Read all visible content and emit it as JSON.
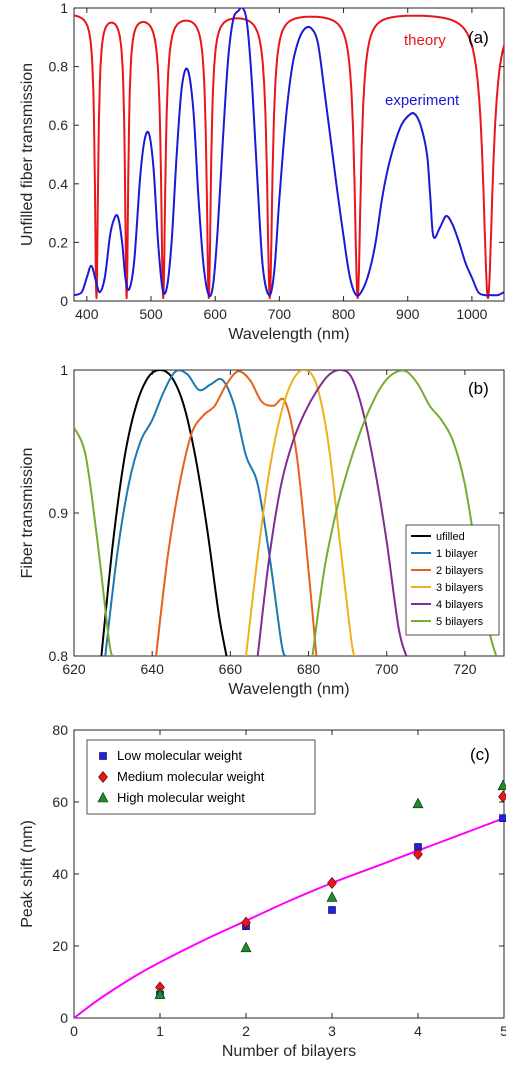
{
  "chart_data": [
    {
      "type": "line",
      "panel_label": "(a)",
      "xlabel": "Wavelength (nm)",
      "ylabel": "Unfilled fiber transmission",
      "xlim": [
        380,
        1050
      ],
      "ylim": [
        0,
        1
      ],
      "xticks": [
        400,
        500,
        600,
        700,
        800,
        900,
        1000
      ],
      "yticks": [
        0,
        0.2,
        0.4,
        0.6,
        0.8,
        1
      ],
      "ytick_labels": [
        "0",
        "0.2",
        "0.4",
        "0.6",
        "0.8",
        "1"
      ],
      "grid": false,
      "annotations": [
        {
          "text": "theory",
          "color": "#e8161b"
        },
        {
          "text": "experiment",
          "color": "#1a1ad6"
        }
      ],
      "series": [
        {
          "name": "theory",
          "color": "#e8161b",
          "dips": [
            {
              "x": 415,
              "width": 3
            },
            {
              "x": 462,
              "width": 3
            },
            {
              "x": 519,
              "width": 4
            },
            {
              "x": 590,
              "width": 4
            },
            {
              "x": 685,
              "width": 5
            },
            {
              "x": 822,
              "width": 6
            },
            {
              "x": 1025,
              "width": 9
            }
          ]
        },
        {
          "name": "experiment",
          "color": "#1a1ad6",
          "x": [
            380,
            392,
            400,
            407,
            414,
            420,
            428,
            436,
            441,
            448,
            455,
            460,
            466,
            474,
            483,
            490,
            497,
            504,
            511,
            518,
            525,
            532,
            540,
            548,
            557,
            566,
            574,
            582,
            590,
            597,
            604,
            612,
            620,
            628,
            636,
            643,
            650,
            658,
            666,
            674,
            684,
            692,
            700,
            710,
            720,
            730,
            740,
            750,
            760,
            770,
            780,
            790,
            800,
            810,
            820,
            830,
            840,
            850,
            860,
            870,
            880,
            890,
            900,
            910,
            920,
            930,
            935,
            940,
            950,
            960,
            970,
            980,
            990,
            1000,
            1010,
            1020,
            1030,
            1040,
            1050
          ],
          "y": [
            0.02,
            0.03,
            0.08,
            0.12,
            0.07,
            0.03,
            0.08,
            0.22,
            0.27,
            0.29,
            0.2,
            0.08,
            0.04,
            0.14,
            0.42,
            0.55,
            0.57,
            0.45,
            0.2,
            0.04,
            0.05,
            0.2,
            0.5,
            0.73,
            0.79,
            0.65,
            0.35,
            0.12,
            0.02,
            0.06,
            0.25,
            0.55,
            0.82,
            0.96,
            0.99,
            1.0,
            0.94,
            0.72,
            0.4,
            0.12,
            0.02,
            0.1,
            0.35,
            0.62,
            0.8,
            0.89,
            0.93,
            0.93,
            0.88,
            0.72,
            0.55,
            0.38,
            0.22,
            0.08,
            0.02,
            0.04,
            0.1,
            0.2,
            0.35,
            0.46,
            0.54,
            0.6,
            0.63,
            0.64,
            0.6,
            0.5,
            0.36,
            0.22,
            0.25,
            0.29,
            0.26,
            0.2,
            0.13,
            0.08,
            0.03,
            0.02,
            0.02,
            0.02,
            0.03
          ]
        }
      ]
    },
    {
      "type": "line",
      "panel_label": "(b)",
      "xlabel": "Wavelength (nm)",
      "ylabel": "Fiber transmission",
      "xlim": [
        620,
        730
      ],
      "ylim": [
        0.8,
        1
      ],
      "xticks": [
        620,
        640,
        660,
        680,
        700,
        720
      ],
      "yticks": [
        0.8,
        0.9,
        1
      ],
      "ytick_labels": [
        "0.8",
        "0.9",
        "1"
      ],
      "grid": false,
      "legend": "bottom-right",
      "series": [
        {
          "name": "ufilled",
          "color": "#000000",
          "x": [
            627,
            630,
            633,
            636,
            639,
            642,
            645,
            648,
            651,
            654,
            657,
            659
          ],
          "y": [
            0.8,
            0.88,
            0.94,
            0.976,
            0.995,
            1.0,
            0.995,
            0.976,
            0.94,
            0.89,
            0.83,
            0.8
          ]
        },
        {
          "name": "1 bilayer",
          "color": "#1f77b4",
          "x": [
            628,
            631,
            634,
            637,
            640,
            643,
            646,
            649,
            652,
            655,
            658,
            661,
            664,
            667,
            670,
            673,
            674
          ],
          "y": [
            0.8,
            0.87,
            0.92,
            0.95,
            0.965,
            0.985,
            0.999,
            0.997,
            0.986,
            0.99,
            0.993,
            0.975,
            0.94,
            0.92,
            0.87,
            0.81,
            0.8
          ]
        },
        {
          "name": "2 bilayers",
          "color": "#e5621c",
          "x": [
            641,
            644,
            647,
            650,
            653,
            656,
            659,
            662,
            665,
            668,
            671,
            674,
            677,
            680,
            682
          ],
          "y": [
            0.8,
            0.87,
            0.92,
            0.955,
            0.968,
            0.975,
            0.99,
            0.999,
            0.993,
            0.978,
            0.975,
            0.978,
            0.94,
            0.86,
            0.8
          ]
        },
        {
          "name": "3 bilayers",
          "color": "#eeb11c",
          "x": [
            664,
            667,
            670,
            673,
            676,
            679,
            682,
            685,
            688,
            691,
            692
          ],
          "y": [
            0.8,
            0.87,
            0.93,
            0.97,
            0.993,
            1.0,
            0.99,
            0.95,
            0.88,
            0.81,
            0.8
          ]
        },
        {
          "name": "4 bilayers",
          "color": "#7e2f8e",
          "x": [
            667,
            670,
            673,
            676,
            679,
            682,
            685,
            688,
            691,
            694,
            697,
            700,
            703,
            705
          ],
          "y": [
            0.8,
            0.87,
            0.92,
            0.95,
            0.97,
            0.985,
            0.996,
            1.0,
            0.995,
            0.97,
            0.93,
            0.88,
            0.82,
            0.8
          ]
        },
        {
          "name": "5 bilayers",
          "color": "#77ac30",
          "x": [
            620,
            623,
            626,
            629,
            630,
            681,
            684,
            687,
            690,
            693,
            696,
            699,
            702,
            705,
            708,
            711,
            714,
            717,
            720,
            723,
            726,
            728
          ],
          "y": [
            0.96,
            0.94,
            0.88,
            0.81,
            0.8,
            0.8,
            0.86,
            0.9,
            0.93,
            0.955,
            0.975,
            0.99,
            0.998,
            0.999,
            0.99,
            0.975,
            0.965,
            0.95,
            0.92,
            0.87,
            0.82,
            0.8
          ],
          "breaks_after_index": 4
        }
      ]
    },
    {
      "type": "scatter",
      "panel_label": "(c)",
      "xlabel": "Number of bilayers",
      "ylabel": "Peak shift (nm)",
      "xlim": [
        0,
        5
      ],
      "ylim": [
        0,
        80
      ],
      "xticks": [
        0,
        1,
        2,
        3,
        4,
        5
      ],
      "yticks": [
        0,
        20,
        40,
        60,
        80
      ],
      "grid": false,
      "legend": "top-left",
      "series": [
        {
          "name": "Low molecular weight",
          "color": "#2222dd",
          "marker": "square",
          "x": [
            1,
            2,
            3,
            4,
            5
          ],
          "y": [
            6.5,
            25.5,
            30,
            47.5,
            55.5
          ]
        },
        {
          "name": "Medium molecular weight",
          "color": "#e8161b",
          "marker": "diamond",
          "x": [
            1,
            2,
            3,
            4,
            5
          ],
          "y": [
            8.5,
            26.5,
            37.5,
            45.5,
            61.5
          ]
        },
        {
          "name": "High molecular weight",
          "color": "#1f8a2e",
          "marker": "triangle",
          "x": [
            1,
            2,
            3,
            4,
            5
          ],
          "y": [
            6.5,
            19.5,
            33.5,
            59.5,
            64.5
          ]
        }
      ],
      "fit_line": {
        "color": "#ff00ff",
        "x": [
          0,
          0.25,
          0.5,
          0.75,
          1,
          1.5,
          2,
          2.5,
          3,
          3.5,
          4,
          4.5,
          5
        ],
        "y": [
          0,
          4.5,
          8.5,
          12.2,
          15.5,
          21.5,
          27,
          32.5,
          37.5,
          42,
          46.5,
          51,
          55.5
        ]
      }
    }
  ]
}
